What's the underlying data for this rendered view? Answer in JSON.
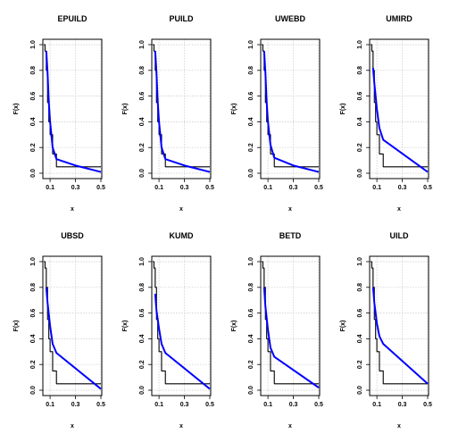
{
  "chart_data": [
    {
      "type": "line",
      "title": "EPUILD",
      "xlabel": "x",
      "ylabel": "F(x)",
      "xlim": [
        0.05,
        0.5
      ],
      "ylim": [
        0,
        1
      ],
      "xticks": [
        "0.1",
        "0.3",
        "0.5"
      ],
      "yticks": [
        "0.0",
        "0.2",
        "0.4",
        "0.6",
        "0.8",
        "1.0"
      ],
      "grid": true,
      "series": [
        {
          "values_x": [
            0.05,
            0.06,
            0.07,
            0.08,
            0.09,
            0.1,
            0.12,
            0.15,
            0.5
          ],
          "values_y": [
            1.0,
            0.95,
            0.8,
            0.55,
            0.4,
            0.3,
            0.15,
            0.05,
            0.05
          ],
          "color": "#000000",
          "step": true
        },
        {
          "values_x": [
            0.07,
            0.08,
            0.09,
            0.1,
            0.12,
            0.15,
            0.3,
            0.5
          ],
          "values_y": [
            0.95,
            0.78,
            0.55,
            0.4,
            0.2,
            0.11,
            0.06,
            0.01
          ],
          "color": "#0000ff"
        }
      ]
    },
    {
      "type": "line",
      "title": "PUILD",
      "xlabel": "x",
      "ylabel": "F(x)",
      "xlim": [
        0.05,
        0.5
      ],
      "ylim": [
        0,
        1
      ],
      "xticks": [
        "0.1",
        "0.3",
        "0.5"
      ],
      "yticks": [
        "0.0",
        "0.2",
        "0.4",
        "0.6",
        "0.8",
        "1.0"
      ],
      "grid": true,
      "series": [
        {
          "values_x": [
            0.05,
            0.06,
            0.07,
            0.08,
            0.09,
            0.1,
            0.12,
            0.15,
            0.5
          ],
          "values_y": [
            1.0,
            0.95,
            0.8,
            0.55,
            0.4,
            0.3,
            0.15,
            0.05,
            0.05
          ],
          "color": "#000000",
          "step": true
        },
        {
          "values_x": [
            0.07,
            0.08,
            0.09,
            0.1,
            0.12,
            0.15,
            0.3,
            0.5
          ],
          "values_y": [
            0.95,
            0.78,
            0.55,
            0.4,
            0.2,
            0.11,
            0.06,
            0.01
          ],
          "color": "#0000ff"
        }
      ]
    },
    {
      "type": "line",
      "title": "UWEBD",
      "xlabel": "x",
      "ylabel": "F(x)",
      "xlim": [
        0.05,
        0.5
      ],
      "ylim": [
        0,
        1
      ],
      "xticks": [
        "0.1",
        "0.3",
        "0.5"
      ],
      "yticks": [
        "0.0",
        "0.2",
        "0.4",
        "0.6",
        "0.8",
        "1.0"
      ],
      "grid": true,
      "series": [
        {
          "values_x": [
            0.05,
            0.06,
            0.07,
            0.08,
            0.09,
            0.1,
            0.12,
            0.15,
            0.5
          ],
          "values_y": [
            1.0,
            0.95,
            0.8,
            0.55,
            0.4,
            0.3,
            0.15,
            0.05,
            0.05
          ],
          "color": "#000000",
          "step": true
        },
        {
          "values_x": [
            0.07,
            0.08,
            0.09,
            0.1,
            0.12,
            0.15,
            0.3,
            0.5
          ],
          "values_y": [
            0.95,
            0.78,
            0.55,
            0.4,
            0.22,
            0.12,
            0.06,
            0.01
          ],
          "color": "#0000ff"
        }
      ]
    },
    {
      "type": "line",
      "title": "UMIRD",
      "xlabel": "x",
      "ylabel": "F(x)",
      "xlim": [
        0.05,
        0.5
      ],
      "ylim": [
        0,
        1
      ],
      "xticks": [
        "0.1",
        "0.3",
        "0.5"
      ],
      "yticks": [
        "0.0",
        "0.2",
        "0.4",
        "0.6",
        "0.8",
        "1.0"
      ],
      "grid": true,
      "series": [
        {
          "values_x": [
            0.05,
            0.06,
            0.07,
            0.08,
            0.09,
            0.1,
            0.12,
            0.15,
            0.5
          ],
          "values_y": [
            1.0,
            0.95,
            0.8,
            0.55,
            0.4,
            0.3,
            0.15,
            0.05,
            0.05
          ],
          "color": "#000000",
          "step": true
        },
        {
          "values_x": [
            0.07,
            0.08,
            0.1,
            0.12,
            0.15,
            0.5
          ],
          "values_y": [
            0.82,
            0.7,
            0.5,
            0.35,
            0.26,
            0.01
          ],
          "color": "#0000ff"
        }
      ]
    },
    {
      "type": "line",
      "title": "UBSD",
      "xlabel": "x",
      "ylabel": "F(x)",
      "xlim": [
        0.05,
        0.5
      ],
      "ylim": [
        0,
        1
      ],
      "xticks": [
        "0.1",
        "0.3",
        "0.5"
      ],
      "yticks": [
        "0.0",
        "0.2",
        "0.4",
        "0.6",
        "0.8",
        "1.0"
      ],
      "grid": true,
      "series": [
        {
          "values_x": [
            0.05,
            0.06,
            0.07,
            0.08,
            0.09,
            0.1,
            0.12,
            0.15,
            0.5
          ],
          "values_y": [
            1.0,
            0.95,
            0.8,
            0.55,
            0.4,
            0.3,
            0.15,
            0.05,
            0.05
          ],
          "color": "#000000",
          "step": true
        },
        {
          "values_x": [
            0.07,
            0.08,
            0.1,
            0.12,
            0.15,
            0.5
          ],
          "values_y": [
            0.8,
            0.68,
            0.5,
            0.36,
            0.29,
            0.01
          ],
          "color": "#0000ff"
        }
      ]
    },
    {
      "type": "line",
      "title": "KUMD",
      "xlabel": "x",
      "ylabel": "F(x)",
      "xlim": [
        0.05,
        0.5
      ],
      "ylim": [
        0,
        1
      ],
      "xticks": [
        "0.1",
        "0.3",
        "0.5"
      ],
      "yticks": [
        "0.0",
        "0.2",
        "0.4",
        "0.6",
        "0.8",
        "1.0"
      ],
      "grid": true,
      "series": [
        {
          "values_x": [
            0.05,
            0.06,
            0.07,
            0.08,
            0.09,
            0.1,
            0.12,
            0.15,
            0.5
          ],
          "values_y": [
            1.0,
            0.95,
            0.8,
            0.55,
            0.4,
            0.3,
            0.15,
            0.05,
            0.05
          ],
          "color": "#000000",
          "step": true
        },
        {
          "values_x": [
            0.07,
            0.08,
            0.1,
            0.12,
            0.15,
            0.5
          ],
          "values_y": [
            0.75,
            0.62,
            0.48,
            0.36,
            0.29,
            0.01
          ],
          "color": "#0000ff"
        }
      ]
    },
    {
      "type": "line",
      "title": "BETD",
      "xlabel": "x",
      "ylabel": "F(x)",
      "xlim": [
        0.05,
        0.5
      ],
      "ylim": [
        0,
        1
      ],
      "xticks": [
        "0.1",
        "0.3",
        "0.5"
      ],
      "yticks": [
        "0.0",
        "0.2",
        "0.4",
        "0.6",
        "0.8",
        "1.0"
      ],
      "grid": true,
      "series": [
        {
          "values_x": [
            0.05,
            0.06,
            0.07,
            0.08,
            0.09,
            0.1,
            0.12,
            0.15,
            0.5
          ],
          "values_y": [
            1.0,
            0.95,
            0.8,
            0.55,
            0.4,
            0.3,
            0.15,
            0.05,
            0.05
          ],
          "color": "#000000",
          "step": true
        },
        {
          "values_x": [
            0.07,
            0.08,
            0.1,
            0.12,
            0.15,
            0.5
          ],
          "values_y": [
            0.8,
            0.65,
            0.47,
            0.33,
            0.26,
            0.02
          ],
          "color": "#0000ff"
        }
      ]
    },
    {
      "type": "line",
      "title": "UILD",
      "xlabel": "x",
      "ylabel": "F(x)",
      "xlim": [
        0.05,
        0.5
      ],
      "ylim": [
        0,
        1
      ],
      "xticks": [
        "0.1",
        "0.3",
        "0.5"
      ],
      "yticks": [
        "0.0",
        "0.2",
        "0.4",
        "0.6",
        "0.8",
        "1.0"
      ],
      "grid": true,
      "series": [
        {
          "values_x": [
            0.05,
            0.06,
            0.07,
            0.08,
            0.09,
            0.1,
            0.12,
            0.15,
            0.5
          ],
          "values_y": [
            1.0,
            0.95,
            0.8,
            0.55,
            0.4,
            0.3,
            0.15,
            0.05,
            0.05
          ],
          "color": "#000000",
          "step": true
        },
        {
          "values_x": [
            0.07,
            0.08,
            0.1,
            0.12,
            0.15,
            0.5
          ],
          "values_y": [
            0.8,
            0.68,
            0.52,
            0.42,
            0.36,
            0.05
          ],
          "color": "#0000ff"
        }
      ]
    }
  ]
}
